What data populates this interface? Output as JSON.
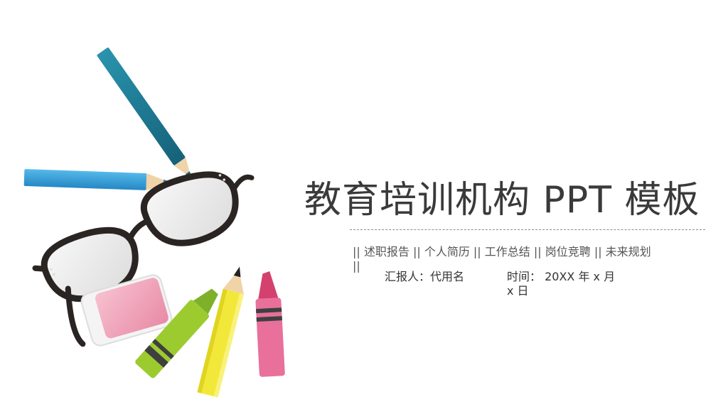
{
  "slide": {
    "title": "教育培训机构 PPT 模板",
    "subtitle": "|| 述职报告 || 个人简历 || 工作总结 || 岗位竞聘 || 未来规划 ||",
    "reporter": "汇报人：代用名",
    "date": "时间：  20XX 年 x 月 x 日"
  },
  "colors": {
    "background": "#ffffff",
    "title_text": "#3a3a3a",
    "pencil_teal": "#1f7d96",
    "pencil_blue": "#3aa3db",
    "crayon_green": "#9ccb2f",
    "pencil_yellow": "#f2e83a",
    "crayon_pink": "#e8709a",
    "eraser_pink": "#f2a6bb"
  },
  "icons": [
    "teal-pencil-icon",
    "blue-pencil-icon",
    "glasses-icon",
    "eraser-icon",
    "green-crayon-icon",
    "yellow-pencil-icon",
    "pink-crayon-icon"
  ]
}
